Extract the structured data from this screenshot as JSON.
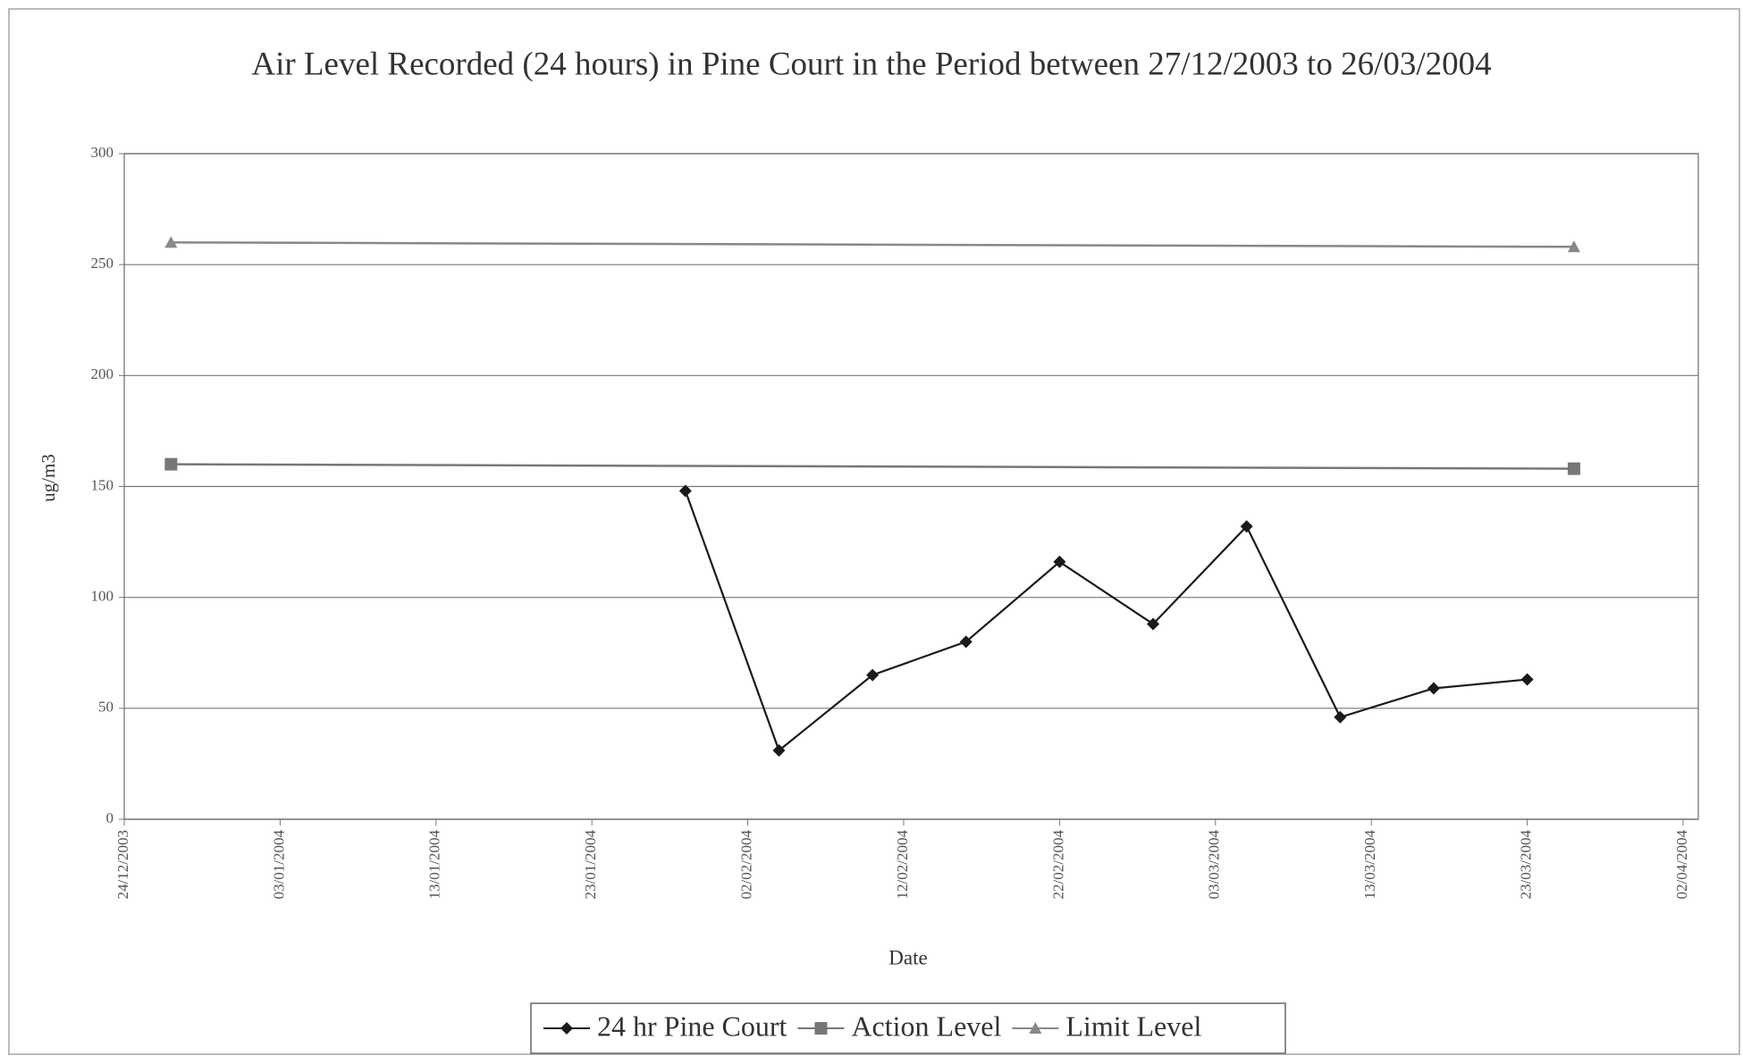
{
  "chart_data": {
    "type": "line",
    "title": "Air Level Recorded (24 hours) in Pine Court in the Period between 27/12/2003 to 26/03/2004",
    "xlabel": "Date",
    "ylabel": "ug/m3",
    "ylim": [
      0,
      300
    ],
    "yticks": [
      0,
      50,
      100,
      150,
      200,
      250,
      300
    ],
    "xlim": [
      "24/12/2003",
      "02/04/2004"
    ],
    "xticks": [
      "24/12/2003",
      "03/01/2004",
      "13/01/2004",
      "23/01/2004",
      "02/02/2004",
      "12/02/2004",
      "22/02/2004",
      "03/03/2004",
      "13/03/2004",
      "23/03/2004",
      "02/04/2004"
    ],
    "grid": true,
    "legend": "bottom",
    "series": [
      {
        "name": "24 hr Pine Court",
        "color": "#1a1a1a",
        "marker": "diamond",
        "x": [
          "29/01/2004",
          "04/02/2004",
          "10/02/2004",
          "16/02/2004",
          "22/02/2004",
          "28/02/2004",
          "05/03/2004",
          "11/03/2004",
          "17/03/2004",
          "23/03/2004"
        ],
        "values": [
          148,
          31,
          65,
          80,
          116,
          88,
          132,
          46,
          59,
          63
        ]
      },
      {
        "name": "Action Level",
        "color": "#777777",
        "marker": "square",
        "x": [
          "27/12/2003",
          "26/03/2004"
        ],
        "values": [
          160,
          158
        ]
      },
      {
        "name": "Limit Level",
        "color": "#888888",
        "marker": "triangle",
        "x": [
          "27/12/2003",
          "26/03/2004"
        ],
        "values": [
          260,
          258
        ]
      }
    ]
  }
}
